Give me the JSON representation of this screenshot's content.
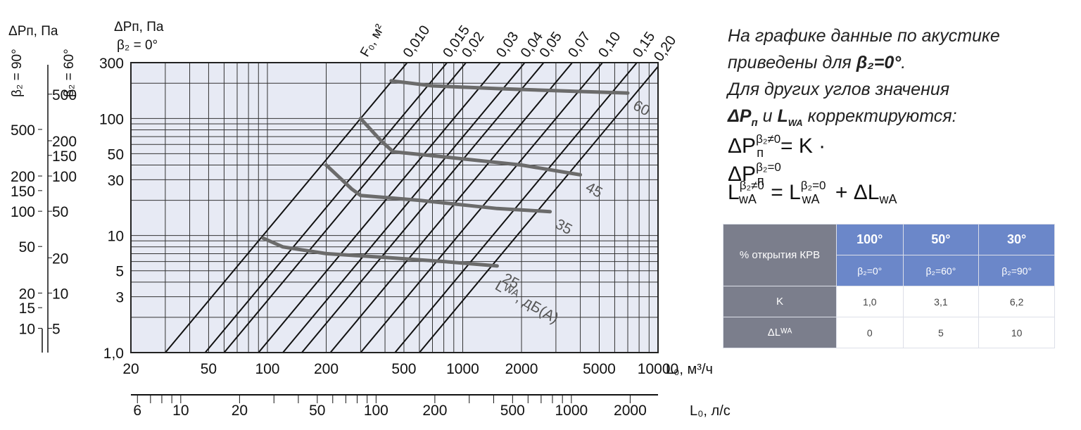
{
  "chart_data": {
    "type": "line",
    "x_scale": "log",
    "y_scale": "log",
    "xlim": [
      20,
      10000
    ],
    "ylim": [
      1,
      300
    ],
    "grid": true,
    "x_ticks": [
      "20",
      "50",
      "100",
      "200",
      "500",
      "1000",
      "2000",
      "5000",
      "10000"
    ],
    "x_tick_values": [
      20,
      50,
      100,
      200,
      500,
      1000,
      2000,
      5000,
      10000
    ],
    "y_ticks": [
      "1,0",
      "3",
      "5",
      "10",
      "30",
      "50",
      "100",
      "300"
    ],
    "y_tick_values": [
      1,
      3,
      5,
      10,
      30,
      50,
      100,
      300
    ],
    "xlabel_main": "L₀, м³/ч",
    "xlabel_second": "L₀, л/с",
    "second_axis_ticks": [
      "6",
      "10",
      "20",
      "50",
      "100",
      "200",
      "500",
      "1000",
      "2000"
    ],
    "second_axis_values": [
      6,
      10,
      20,
      50,
      100,
      200,
      500,
      1000,
      2000
    ],
    "ylabel_main": "ΔPп, Па",
    "ylabel_beta": "β₂ = 0°",
    "left_axis_1": {
      "label": "ΔPп, Па",
      "beta": "β₂ = 90°",
      "ticks": [
        "10",
        "15",
        "20",
        "50",
        "100",
        "150",
        "200",
        "500"
      ],
      "values": [
        10,
        15,
        20,
        50,
        100,
        150,
        200,
        500
      ],
      "factor": 6.2
    },
    "left_axis_2": {
      "beta": "β₂ = 60°",
      "ticks": [
        "5",
        "10",
        "20",
        "50",
        "100",
        "150",
        "200",
        "500"
      ],
      "values": [
        5,
        10,
        20,
        50,
        100,
        150,
        200,
        500
      ],
      "factor": 3.1
    },
    "f0_label": "F₀, м²",
    "f0_lines": [
      {
        "label": "0,010",
        "points": [
          [
            30,
            1
          ],
          [
            300,
            100
          ]
        ]
      },
      {
        "label": "0,015",
        "points": [
          [
            48,
            1
          ],
          [
            480,
            100
          ]
        ]
      },
      {
        "label": "0,02",
        "points": [
          [
            60,
            1
          ],
          [
            600,
            100
          ]
        ]
      },
      {
        "label": "0,03",
        "points": [
          [
            90,
            1
          ],
          [
            900,
            100
          ]
        ]
      },
      {
        "label": "0,04",
        "points": [
          [
            120,
            1
          ],
          [
            1200,
            100
          ]
        ]
      },
      {
        "label": "0,05",
        "points": [
          [
            150,
            1
          ],
          [
            1500,
            100
          ]
        ]
      },
      {
        "label": "0,07",
        "points": [
          [
            210,
            1
          ],
          [
            2100,
            100
          ]
        ]
      },
      {
        "label": "0,10",
        "points": [
          [
            300,
            1
          ],
          [
            3000,
            100
          ]
        ]
      },
      {
        "label": "0,15",
        "points": [
          [
            450,
            1
          ],
          [
            4500,
            100
          ]
        ]
      },
      {
        "label": "0,20",
        "points": [
          [
            600,
            1
          ],
          [
            6000,
            100
          ]
        ]
      }
    ],
    "series": [
      {
        "name": "25",
        "points": [
          [
            95,
            9.5
          ],
          [
            120,
            8
          ],
          [
            200,
            7
          ],
          [
            400,
            6.5
          ],
          [
            800,
            6
          ],
          [
            1500,
            5.5
          ]
        ]
      },
      {
        "name": "35",
        "points": [
          [
            200,
            40
          ],
          [
            270,
            25
          ],
          [
            300,
            22
          ],
          [
            600,
            20
          ],
          [
            1500,
            17
          ],
          [
            2800,
            16
          ]
        ]
      },
      {
        "name": "45",
        "points": [
          [
            300,
            100
          ],
          [
            380,
            65
          ],
          [
            440,
            52
          ],
          [
            800,
            47
          ],
          [
            2000,
            40
          ],
          [
            4000,
            33
          ]
        ]
      },
      {
        "name": "60",
        "points": [
          [
            430,
            210
          ],
          [
            700,
            190
          ],
          [
            1500,
            180
          ],
          [
            4000,
            170
          ],
          [
            7000,
            165
          ]
        ]
      }
    ],
    "series_label": "Lᵂᴬ, дБ(А)"
  },
  "note": {
    "line1": "На графике данные по акустике",
    "line2a": "приведены для ",
    "line2b": "β₂=0°",
    "line2c": ".",
    "line3": "Для  других углов значения",
    "line4a": "ΔP",
    "line4sub": "п",
    "line4b": " и ",
    "line4c": "L",
    "line4sub2": "WA",
    "line4d": " корректируются:"
  },
  "formula": {
    "f1": "ΔP",
    "f1sub": "п",
    "f1sup": "β₂≠0",
    "f1eq": "= K · ΔP",
    "f1sub2": "п",
    "f1sup2": "β₂=0",
    "f2": "L",
    "f2sub": "wA",
    "f2sup": "β₂≠0",
    "f2eq": " = L",
    "f2sub2": "wA",
    "f2sup2": "β₂=0",
    "f2end": " + ΔL",
    "f2sub3": "wA"
  },
  "table": {
    "head_label": "% открытия КРВ",
    "open": [
      "100°",
      "50°",
      "30°"
    ],
    "beta": [
      "β₂=0°",
      "β₂=60°",
      "β₂=90°"
    ],
    "k_label": "K",
    "k": [
      "1,0",
      "3,1",
      "6,2"
    ],
    "dl_label": "ΔLᵂᴬ",
    "dl": [
      "0",
      "5",
      "10"
    ]
  }
}
